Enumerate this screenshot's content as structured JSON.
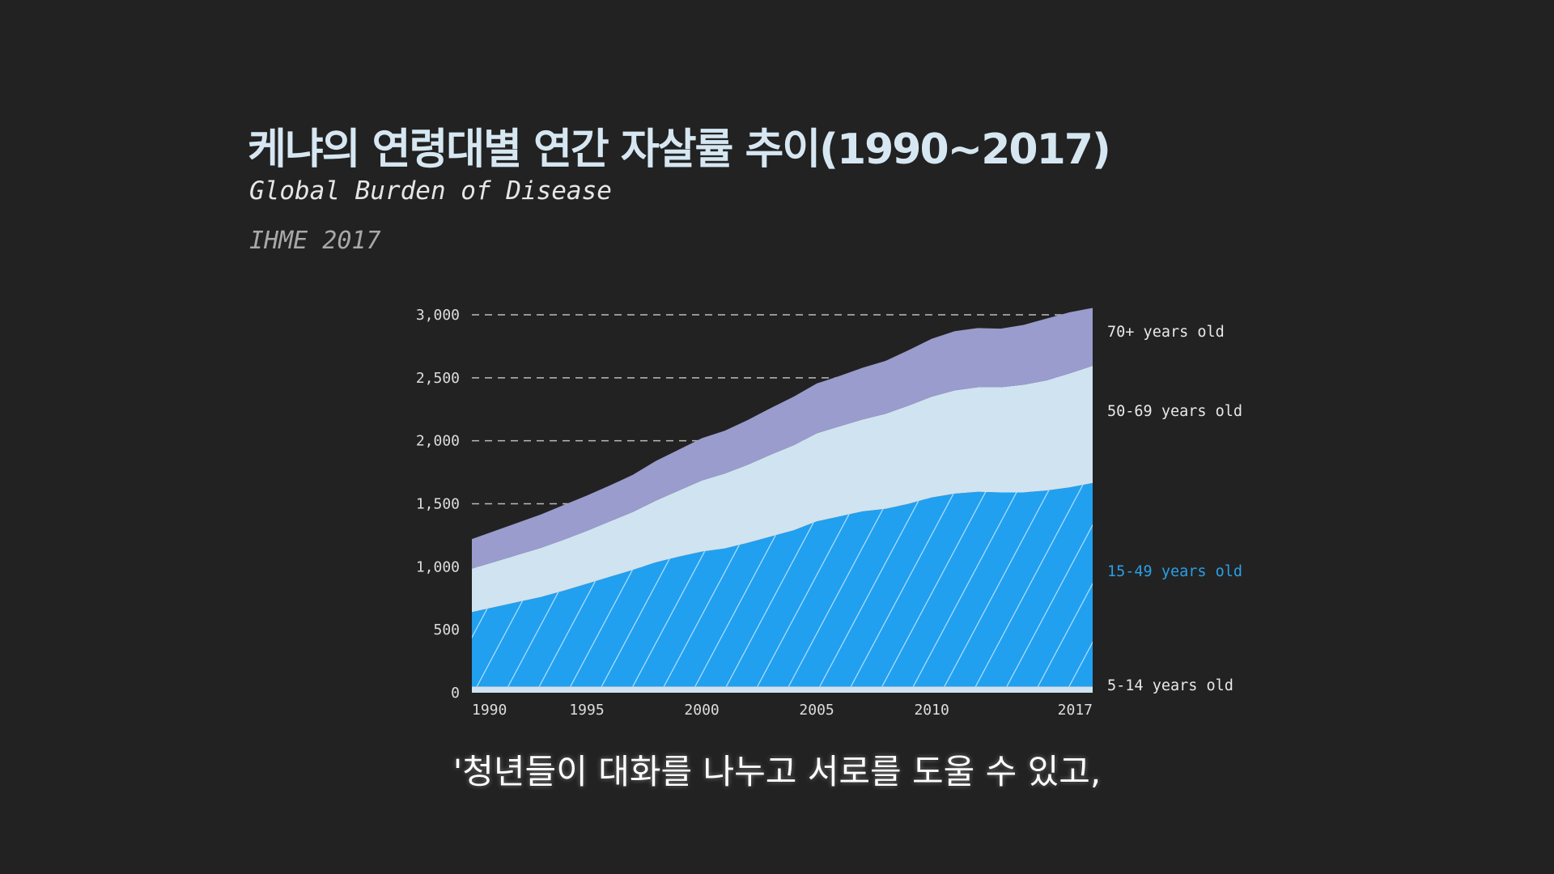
{
  "header": {
    "title": "케냐의 연령대별 연간 자살률 추이(1990~2017)",
    "source": "Global Burden of Disease",
    "source_year": "IHME 2017"
  },
  "caption": "'청년들이 대화를 나누고 서로를 도울 수 있고,",
  "colors": {
    "background": "#222222",
    "title": "#d6e7f2",
    "age_5_14": "#cfe3f0",
    "age_15_49": "#21a0f0",
    "age_50_69": "#cfe3f0",
    "age_70_plus": "#9a9ccd",
    "hatch": "#bfe6ff",
    "label_default": "#e8e8e8",
    "label_highlight": "#2b9fe6",
    "grid": "#bbbbbb",
    "axis_text": "#dddddd"
  },
  "chart_data": {
    "type": "area",
    "stacked": true,
    "title": "케냐의 연령대별 연간 자살률 추이(1990~2017)",
    "xlabel": "",
    "ylabel": "",
    "x": [
      1990,
      1991,
      1992,
      1993,
      1994,
      1995,
      1996,
      1997,
      1998,
      1999,
      2000,
      2001,
      2002,
      2003,
      2004,
      2005,
      2006,
      2007,
      2008,
      2009,
      2010,
      2011,
      2012,
      2013,
      2014,
      2015,
      2016,
      2017
    ],
    "x_ticks": [
      "1990",
      "1995",
      "2000",
      "2005",
      "2010",
      "2017"
    ],
    "x_tick_values": [
      1990,
      1995,
      2000,
      2005,
      2010,
      2017
    ],
    "ylim": [
      0,
      3000
    ],
    "y_ticks": [
      0,
      500,
      1000,
      1500,
      2000,
      2500,
      3000
    ],
    "y_tick_labels": [
      "0",
      "500",
      "1,000",
      "1,500",
      "2,000",
      "2,500",
      "3,000"
    ],
    "grid": "horizontal-dashed",
    "legend_placement": "right",
    "series": [
      {
        "name": "5-14 years old",
        "key": "age_5_14",
        "highlight": false,
        "values": [
          50,
          50,
          50,
          50,
          50,
          50,
          50,
          50,
          50,
          50,
          50,
          50,
          50,
          50,
          50,
          50,
          50,
          50,
          50,
          50,
          50,
          50,
          50,
          50,
          50,
          50,
          50,
          50
        ]
      },
      {
        "name": "15-49 years old",
        "key": "age_15_49",
        "highlight": true,
        "values": [
          590,
          630,
          670,
          710,
          760,
          815,
          870,
          925,
          985,
          1030,
          1070,
          1095,
          1140,
          1190,
          1240,
          1310,
          1350,
          1390,
          1410,
          1450,
          1500,
          1530,
          1545,
          1540,
          1540,
          1555,
          1580,
          1615
        ]
      },
      {
        "name": "50-69 years old",
        "key": "age_50_69",
        "highlight": false,
        "values": [
          345,
          360,
          375,
          390,
          405,
          420,
          440,
          460,
          490,
          525,
          565,
          595,
          620,
          650,
          675,
          700,
          715,
          730,
          755,
          780,
          800,
          820,
          830,
          835,
          855,
          875,
          905,
          930
        ]
      },
      {
        "name": "70+ years old",
        "key": "age_70_plus",
        "highlight": false,
        "values": [
          235,
          245,
          255,
          265,
          275,
          280,
          285,
          295,
          315,
          325,
          335,
          340,
          355,
          370,
          385,
          395,
          400,
          410,
          420,
          440,
          460,
          470,
          470,
          465,
          475,
          490,
          485,
          460
        ]
      }
    ]
  }
}
